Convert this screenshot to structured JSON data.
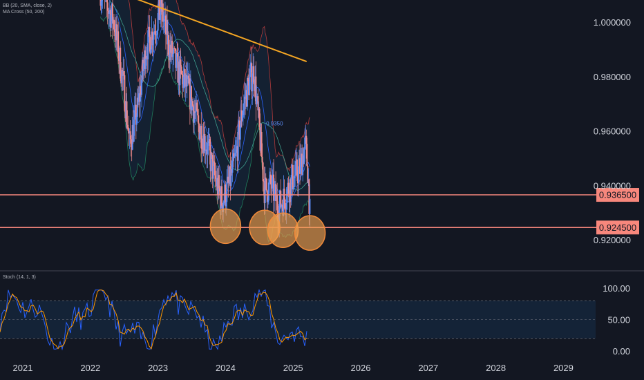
{
  "chart_data": {
    "type": "candlestick",
    "indicators_legend": {
      "bb": "BB (20, SMA, close, 2)",
      "ma": "MA Cross (50, 200)",
      "stoch": "Stoch (14, 1, 3)"
    },
    "price_axis": {
      "ticks": [
        {
          "value": 1.0,
          "label": "1.000000"
        },
        {
          "value": 0.98,
          "label": "0.980000"
        },
        {
          "value": 0.96,
          "label": "0.960000"
        },
        {
          "value": 0.94,
          "label": "0.940000"
        },
        {
          "value": 0.92,
          "label": "0.920000"
        }
      ]
    },
    "stoch_axis": {
      "ticks": [
        {
          "value": 100,
          "label": "100.00"
        },
        {
          "value": 50,
          "label": "50.00"
        },
        {
          "value": 0,
          "label": "0.00"
        }
      ],
      "band": [
        20,
        80
      ]
    },
    "time_axis": {
      "ticks": [
        "2021",
        "2022",
        "2023",
        "2024",
        "2025",
        "2026",
        "2027",
        "2028",
        "2029"
      ]
    },
    "horizontal_levels": [
      {
        "value": 0.9365,
        "label": "0.936500",
        "color": "#f7877c"
      },
      {
        "value": 0.9245,
        "label": "0.924500",
        "color": "#f7877c"
      }
    ],
    "annotation_label": "0.9350",
    "highlight_circles": [
      {
        "time": 2024.0,
        "price": 0.925
      },
      {
        "time": 2024.58,
        "price": 0.9245
      },
      {
        "time": 2024.85,
        "price": 0.9235
      },
      {
        "time": 2025.25,
        "price": 0.9225
      }
    ],
    "trendline": [
      {
        "time": 2021.75,
        "price": 1.017
      },
      {
        "time": 2025.2,
        "price": 0.9855
      }
    ],
    "colors": {
      "background": "#131722",
      "up": "#5b8cf5",
      "down": "#f08a8a",
      "level_line": "#f7877c",
      "circle_fill": "#f0a050",
      "trendline": "#f5a623",
      "stoch_k": "#2962ff",
      "stoch_d": "#ff9800"
    }
  }
}
